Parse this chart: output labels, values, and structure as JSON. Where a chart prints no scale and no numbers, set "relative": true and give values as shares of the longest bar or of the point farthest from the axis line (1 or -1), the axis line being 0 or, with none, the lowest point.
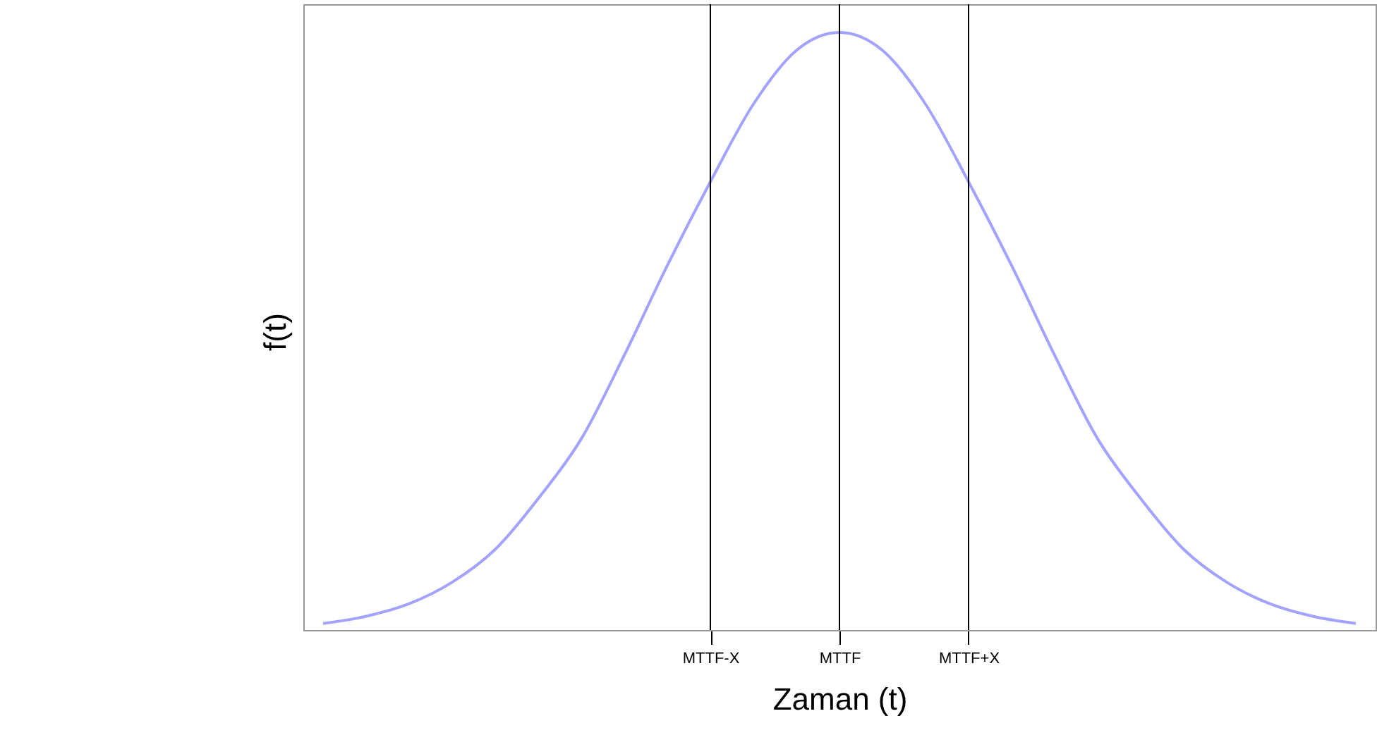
{
  "chart_data": {
    "type": "line",
    "relative": true,
    "xlabel": "Zaman (t)",
    "ylabel": "f(t)",
    "categories": [
      null,
      null,
      null,
      null,
      null,
      null,
      null,
      null,
      null,
      "MTTF-X",
      null,
      null,
      "MTTF",
      null,
      null,
      "MTTF+X",
      null,
      null,
      null,
      null,
      null,
      null,
      null,
      null,
      null
    ],
    "series": [
      {
        "color": "#9999ff",
        "values": [
          0.011,
          0.023,
          0.044,
          0.08,
          0.135,
          0.22,
          0.32,
          0.46,
          0.61,
          0.75,
          0.88,
          0.97,
          1,
          0.97,
          0.88,
          0.75,
          0.61,
          0.46,
          0.32,
          0.22,
          0.135,
          0.08,
          0.044,
          0.023,
          0.011
        ]
      }
    ],
    "ref_lines": [
      {
        "axis": "x",
        "value": "MTTF-X",
        "color": "#000000"
      },
      {
        "axis": "x",
        "value": "MTTF",
        "color": "#000000"
      },
      {
        "axis": "x",
        "value": "MTTF+X",
        "color": "#000000"
      }
    ],
    "grid": false
  }
}
